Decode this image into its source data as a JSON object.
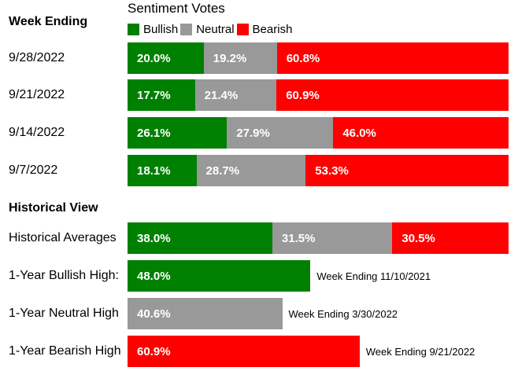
{
  "header": {
    "week_ending_title": "Week Ending",
    "sentiment_title": "Sentiment Votes",
    "historical_title": "Historical View"
  },
  "legend": [
    {
      "label": "Bullish",
      "color": "#008000"
    },
    {
      "label": "Neutral",
      "color": "#999999"
    },
    {
      "label": "Bearish",
      "color": "#ff0000"
    }
  ],
  "colors": {
    "bullish": "#008000",
    "neutral": "#999999",
    "bearish": "#ff0000"
  },
  "chart_data": [
    {
      "type": "bar",
      "stacked": true,
      "orientation": "horizontal",
      "title": "Sentiment Votes",
      "categories": [
        "9/28/2022",
        "9/21/2022",
        "9/14/2022",
        "9/7/2022",
        "Historical Averages"
      ],
      "series": [
        {
          "name": "Bullish",
          "values": [
            20.0,
            17.7,
            26.1,
            18.1,
            38.0
          ],
          "labels": [
            "20.0%",
            "17.7%",
            "26.1%",
            "18.1%",
            "38.0%"
          ]
        },
        {
          "name": "Neutral",
          "values": [
            19.2,
            21.4,
            27.9,
            28.7,
            31.5
          ],
          "labels": [
            "19.2%",
            "21.4%",
            "27.9%",
            "28.7%",
            "31.5%"
          ]
        },
        {
          "name": "Bearish",
          "values": [
            60.8,
            60.9,
            46.0,
            53.3,
            30.5
          ],
          "labels": [
            "60.8%",
            "60.9%",
            "46.0%",
            "53.3%",
            "30.5%"
          ]
        }
      ],
      "xlim": [
        0,
        100
      ],
      "legend": "top",
      "grid": false
    },
    {
      "type": "bar",
      "orientation": "horizontal",
      "categories": [
        "1-Year Bullish High:",
        "1-Year Neutral High",
        "1-Year Bearish High"
      ],
      "values": [
        48.0,
        40.6,
        60.9
      ],
      "labels": [
        "48.0%",
        "40.6%",
        "60.9%"
      ],
      "kinds": [
        "bullish",
        "neutral",
        "bearish"
      ],
      "notes": [
        "Week Ending 11/10/2021",
        "Week Ending 3/30/2022",
        "Week Ending 9/21/2022"
      ],
      "xlim": [
        0,
        100
      ],
      "grid": false
    }
  ]
}
